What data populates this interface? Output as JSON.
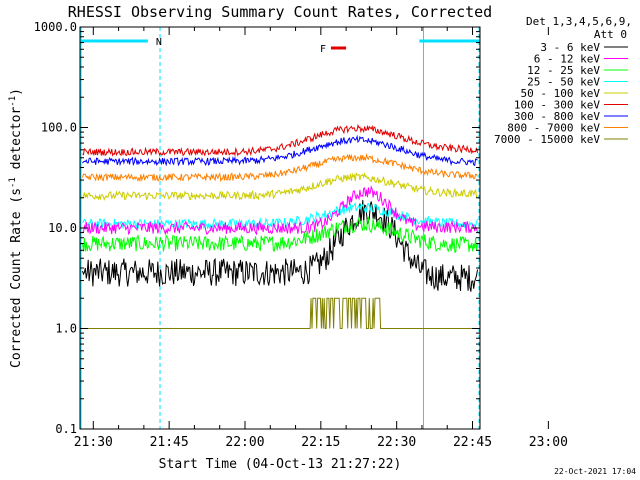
{
  "chart_data": {
    "type": "line",
    "title": "RHESSI Observing Summary Count Rates, Corrected",
    "xlabel": "Start Time (04-Oct-13 21:27:22)",
    "ylabel_pre": "Corrected Count Rate (s",
    "ylabel_sup1": "-1",
    "ylabel_mid": " detector",
    "ylabel_sup2": "-1",
    "ylabel_post": ")",
    "y_scale": "log",
    "ylim": [
      0.1,
      1000.0
    ],
    "y_ticks": [
      "1000.0",
      "100.0",
      "10.0",
      "1.0",
      "0.1"
    ],
    "x_ticks": [
      "21:30",
      "21:45",
      "22:00",
      "22:15",
      "22:30",
      "22:45",
      "23:00"
    ],
    "xlim_minutes": [
      -2.63,
      76.48
    ],
    "detectors": "Det 1,3,4,5,6,9,",
    "attenuator": "Att 0",
    "footer_date": "22-Oct-2021 17:04",
    "flags": [
      {
        "label": "N",
        "color": "#00e0ff",
        "segments": [
          [
            -2.6,
            10.8
          ],
          [
            64.5,
            76.5
          ]
        ]
      },
      {
        "label": "F",
        "color": "#e00000",
        "segments": [
          [
            47.0,
            50.0
          ]
        ]
      }
    ],
    "night_boundaries_minutes": [
      -2.5,
      13.2,
      65.3,
      76.6
    ],
    "series": [
      {
        "name": "3 - 6 keV",
        "color": "#000000",
        "pre": 3.6,
        "peak": 15.0,
        "post": 3.2,
        "peak_min": 54.5,
        "width": 6.0,
        "noise": 0.14
      },
      {
        "name": "6 - 12 keV",
        "color": "#ff00ff",
        "pre": 10.0,
        "peak": 23.0,
        "post": 10.2,
        "peak_min": 54.0,
        "width": 5.5,
        "noise": 0.06
      },
      {
        "name": "12 - 25 keV",
        "color": "#00ff00",
        "pre": 7.0,
        "peak": 11.0,
        "post": 6.8,
        "peak_min": 53.0,
        "width": 9.0,
        "noise": 0.08
      },
      {
        "name": "25 - 50 keV",
        "color": "#00ffff",
        "pre": 11.0,
        "peak": 16.0,
        "post": 11.0,
        "peak_min": 53.0,
        "width": 9.0,
        "noise": 0.05
      },
      {
        "name": "50 - 100 keV",
        "color": "#cccc00",
        "pre": 21.0,
        "peak": 32.0,
        "post": 22.0,
        "peak_min": 52.0,
        "width": 10.0,
        "noise": 0.04
      },
      {
        "name": "100 - 300 keV",
        "color": "#e00000",
        "pre": 57.0,
        "peak": 98.0,
        "post": 60.0,
        "peak_min": 52.0,
        "width": 11.0,
        "noise": 0.035
      },
      {
        "name": "300 - 800 keV",
        "color": "#0000ff",
        "pre": 46.0,
        "peak": 75.0,
        "post": 45.0,
        "peak_min": 52.0,
        "width": 11.0,
        "noise": 0.035
      },
      {
        "name": "800 - 7000 keV",
        "color": "#ff8000",
        "pre": 32.0,
        "peak": 50.0,
        "post": 33.0,
        "peak_min": 52.0,
        "width": 11.0,
        "noise": 0.035
      },
      {
        "name": "7000 - 15000 keV",
        "color": "#808000",
        "pre": 1.0,
        "peak": 1.6,
        "post": 1.0,
        "peak_min": 46.0,
        "width": 8.0,
        "noise": 0.0
      }
    ]
  }
}
